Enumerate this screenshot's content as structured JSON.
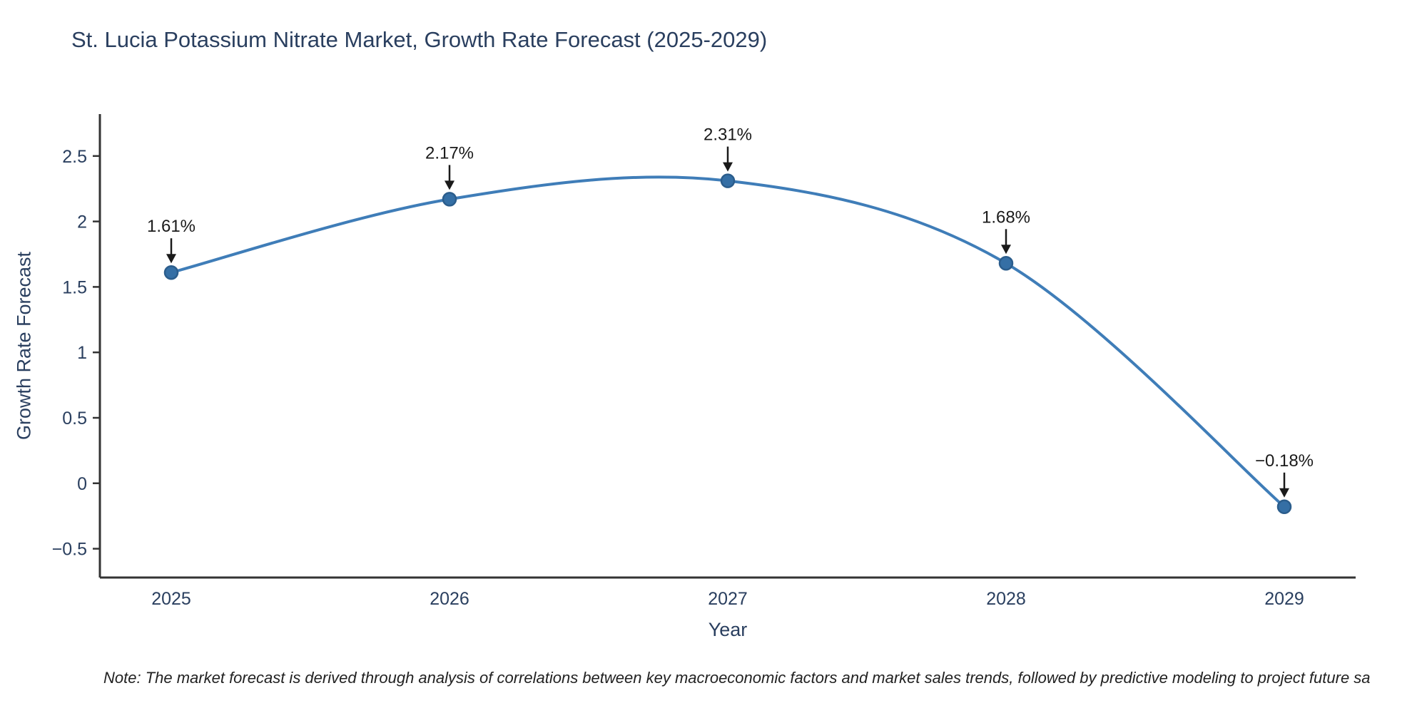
{
  "title": "St. Lucia Potassium Nitrate Market, Growth Rate Forecast (2025-2029)",
  "note": "Note: The market forecast is derived through analysis of correlations between key macroeconomic factors and market sales trends, followed by predictive modeling to project future sa",
  "chart_data": {
    "type": "line",
    "title": "St. Lucia Potassium Nitrate Market, Growth Rate Forecast (2025-2029)",
    "xlabel": "Year",
    "ylabel": "Growth Rate Forecast",
    "categories": [
      "2025",
      "2026",
      "2027",
      "2028",
      "2029"
    ],
    "values": [
      1.61,
      2.17,
      2.31,
      1.68,
      -0.18
    ],
    "point_labels": [
      "1.61%",
      "2.17%",
      "2.31%",
      "1.68%",
      "−0.18%"
    ],
    "yticks": [
      -0.5,
      0,
      0.5,
      1,
      1.5,
      2,
      2.5
    ],
    "ytick_labels": [
      "−0.5",
      "0",
      "0.5",
      "1",
      "1.5",
      "2",
      "2.5"
    ],
    "ylim": [
      -0.72,
      2.82
    ],
    "grid": false,
    "legend": "none",
    "line_shape": "spline",
    "line_color": "#3f7db8",
    "marker_fill": "#356fa5",
    "marker_stroke": "#2b5d8c",
    "axis_color": "#333333",
    "tick_text_color": "#2a3f5f",
    "annotation_color": "#1a1a1a"
  }
}
